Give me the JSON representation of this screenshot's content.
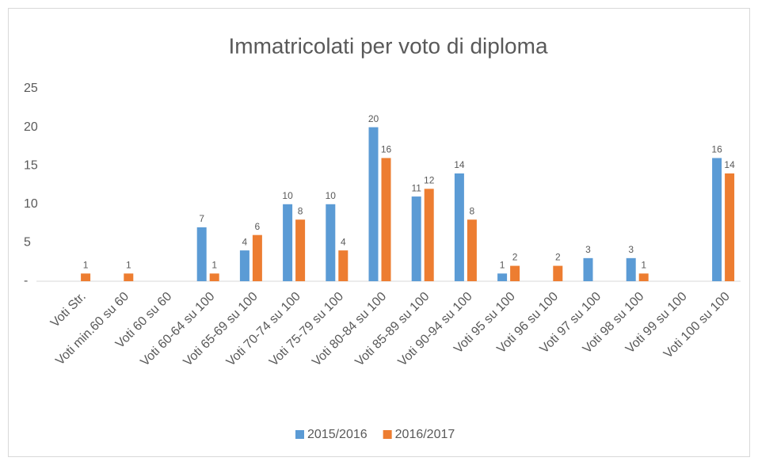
{
  "chart_data": {
    "type": "bar",
    "title": "Immatricolati per voto di diploma",
    "categories": [
      "Voti Str.",
      "Voti min.60 su 60",
      "Voti 60 su 60",
      "Voti 60-64 su 100",
      "Voti 65-69 su 100",
      "Voti 70-74 su 100",
      "Voti 75-79 su 100",
      "Voti 80-84 su 100",
      "Voti 85-89 su 100",
      "Voti 90-94 su 100",
      "Voti 95 su 100",
      "Voti 96 su 100",
      "Voti 97 su 100",
      "Voti 98 su 100",
      "Voti 99 su 100",
      "Voti 100 su 100"
    ],
    "series": [
      {
        "name": "2015/2016",
        "color": "#5b9bd5",
        "values": [
          0,
          0,
          0,
          7,
          4,
          10,
          10,
          20,
          11,
          14,
          1,
          0,
          3,
          3,
          0,
          16
        ],
        "value_labels": [
          null,
          null,
          null,
          "7",
          "4",
          "10",
          "10",
          "20",
          "11",
          "14",
          "1",
          null,
          "3",
          "3",
          null,
          "16"
        ]
      },
      {
        "name": "2016/2017",
        "color": "#ed7d31",
        "values": [
          1,
          1,
          0,
          1,
          6,
          8,
          4,
          16,
          12,
          8,
          2,
          2,
          0,
          1,
          0,
          14
        ],
        "value_labels": [
          "1",
          "1",
          null,
          "1",
          "6",
          "8",
          "4",
          "16",
          "12",
          "8",
          "2",
          "2",
          null,
          "1",
          null,
          "14"
        ]
      }
    ],
    "ylim": [
      0,
      25
    ],
    "yticks": [
      {
        "value": 0,
        "label": "-"
      },
      5,
      10,
      15,
      20,
      25
    ],
    "grid": false,
    "legend": "bottom"
  }
}
